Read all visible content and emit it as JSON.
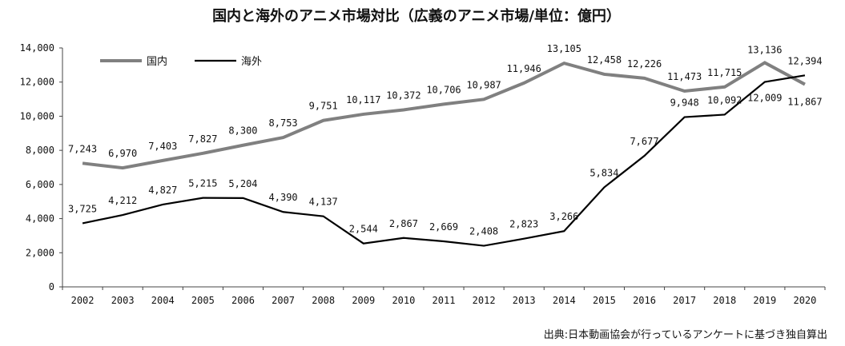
{
  "chart_data": {
    "type": "line",
    "title": "国内と海外のアニメ市場対比（広義のアニメ市場/単位：億円）",
    "source": "出典:日本動画協会が行っているアンケートに基づき独自算出",
    "categories": [
      "2002",
      "2003",
      "2004",
      "2005",
      "2006",
      "2007",
      "2008",
      "2009",
      "2010",
      "2011",
      "2012",
      "2013",
      "2014",
      "2015",
      "2016",
      "2017",
      "2018",
      "2019",
      "2020"
    ],
    "ylim": [
      0,
      14000
    ],
    "yticks": [
      0,
      2000,
      4000,
      6000,
      8000,
      10000,
      12000,
      14000
    ],
    "ytick_labels": [
      "0",
      "2,000",
      "4,000",
      "6,000",
      "8,000",
      "10,000",
      "12,000",
      "14,000"
    ],
    "legend_position": "top-left",
    "grid": false,
    "series": [
      {
        "name": "国内",
        "color": "#808080",
        "values": [
          7243,
          6970,
          7403,
          7827,
          8300,
          8753,
          9751,
          10117,
          10372,
          10706,
          10987,
          11946,
          13105,
          12458,
          12226,
          11473,
          11715,
          13136,
          11867
        ],
        "labels": [
          "7,243",
          "6,970",
          "7,403",
          "7,827",
          "8,300",
          "8,753",
          "9,751",
          "10,117",
          "10,372",
          "10,706",
          "10,987",
          "11,946",
          "13,105",
          "12,458",
          "12,226",
          "11,473",
          "11,715",
          "13,136",
          "11,867"
        ]
      },
      {
        "name": "海外",
        "color": "#000000",
        "values": [
          3725,
          4212,
          4827,
          5215,
          5204,
          4390,
          4137,
          2544,
          2867,
          2669,
          2408,
          2823,
          3266,
          5834,
          7677,
          9948,
          10092,
          12009,
          12394
        ],
        "labels": [
          "3,725",
          "4,212",
          "4,827",
          "5,215",
          "5,204",
          "4,390",
          "4,137",
          "2,544",
          "2,867",
          "2,669",
          "2,408",
          "2,823",
          "3,266",
          "5,834",
          "7,677",
          "9,948",
          "10,092",
          "12,009",
          "12,394"
        ]
      }
    ]
  }
}
